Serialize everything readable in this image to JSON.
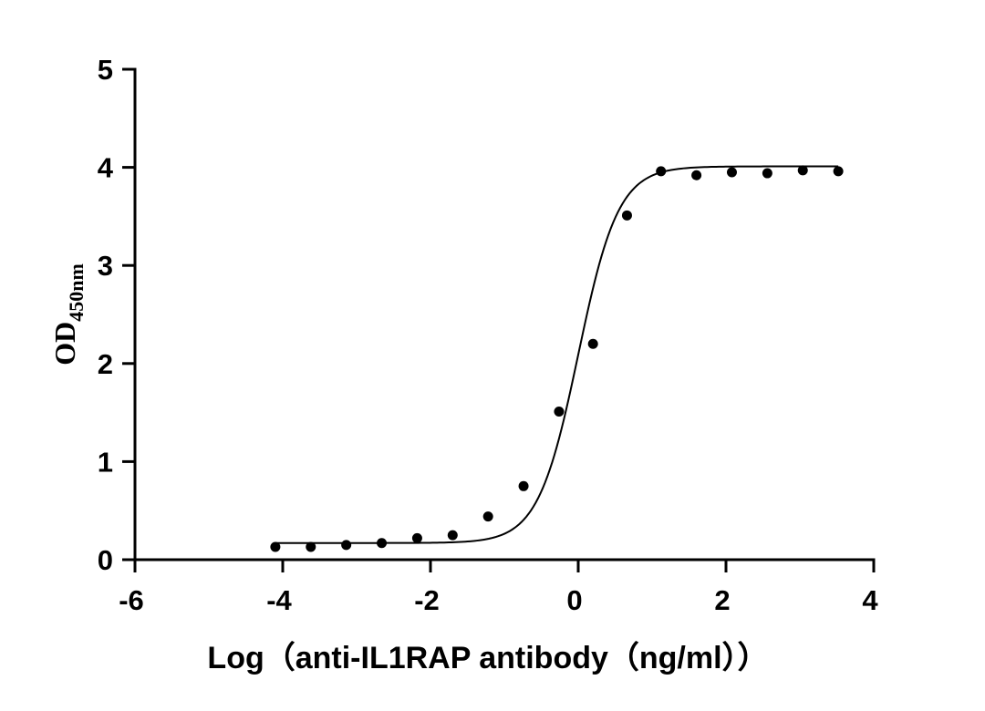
{
  "chart_data": {
    "type": "scatter",
    "title": "",
    "xlabel": "Log（anti-IL1RAP antibody（ng/ml））",
    "ylabel": "OD",
    "ylabel_subscript": "450nm",
    "xlim": [
      -6,
      4
    ],
    "ylim": [
      0,
      5
    ],
    "xticks": [
      -6,
      -4,
      -2,
      0,
      2,
      4
    ],
    "yticks": [
      0,
      1,
      2,
      3,
      4,
      5
    ],
    "xtick_labels": [
      "-6",
      "-4",
      "-2",
      "0",
      "2",
      "4"
    ],
    "ytick_labels": [
      "0",
      "1",
      "2",
      "3",
      "4",
      "5"
    ],
    "grid": false,
    "series": [
      {
        "mode": "markers",
        "color": "#000000",
        "x": [
          -4.1,
          -3.62,
          -3.14,
          -2.66,
          -2.18,
          -1.7,
          -1.22,
          -0.74,
          -0.26,
          0.2,
          0.66,
          1.12,
          1.6,
          2.08,
          2.56,
          3.04,
          3.52
        ],
        "y": [
          0.13,
          0.13,
          0.15,
          0.17,
          0.22,
          0.25,
          0.44,
          0.75,
          1.51,
          2.2,
          3.51,
          3.96,
          3.92,
          3.95,
          3.94,
          3.97,
          3.96
        ]
      },
      {
        "mode": "fit-curve",
        "model": "four-parameter logistic",
        "color": "#000000",
        "bottom": 0.17,
        "top": 4.01,
        "log_ec50": 0.0,
        "hill_slope": 1.6,
        "x_range": [
          -4.1,
          3.52
        ]
      }
    ]
  }
}
